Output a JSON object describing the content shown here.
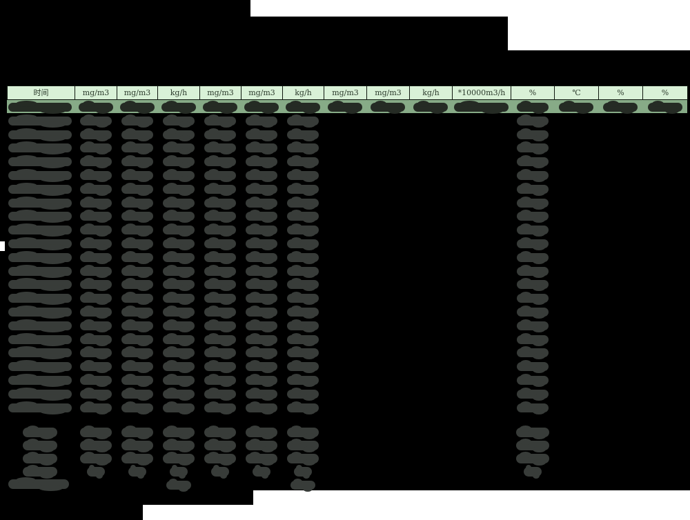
{
  "document": {
    "type": "redacted monitoring data report table",
    "background": "#ffffff"
  },
  "table": {
    "column_headers": [
      "时间",
      "mg/m3",
      "mg/m3",
      "kg/h",
      "mg/m3",
      "mg/m3",
      "kg/h",
      "mg/m3",
      "mg/m3",
      "kg/h",
      "*10000m3/h",
      "%",
      "℃",
      "%",
      "%"
    ],
    "data_row_count": 23,
    "summary_row_count": 4,
    "footer_note_rows": 1,
    "all_values_redacted": true
  },
  "colors": {
    "page_bg": "#ffffff",
    "redaction_block": "#000000",
    "header_cell_bg": "#d9f1d7",
    "header_cell_border": "#0e160e",
    "first_row_highlight": "#87ab87",
    "redacted_value_blob": "#383c39",
    "first_row_blob": "#252b24"
  }
}
